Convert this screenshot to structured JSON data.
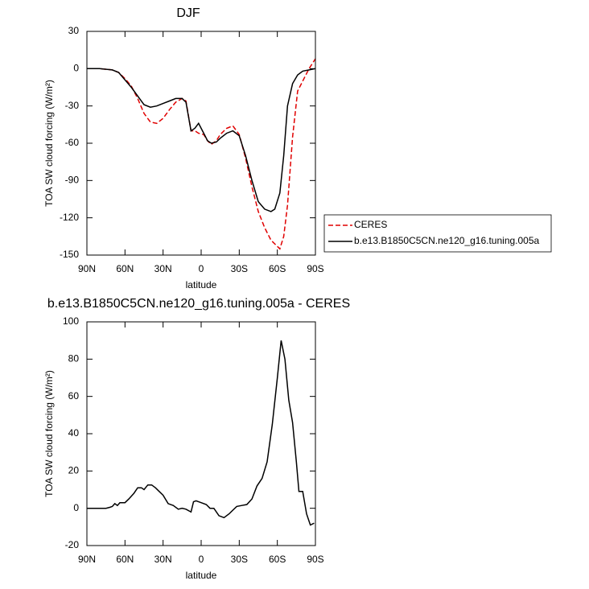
{
  "chart_data": [
    {
      "type": "line",
      "title": "DJF",
      "xlabel": "latitude",
      "ylabel": "TOA SW cloud forcing (W/m²)",
      "xlim": [
        90,
        -90
      ],
      "ylim": [
        -150,
        30
      ],
      "xticks": [
        {
          "value": 90,
          "label": "90N"
        },
        {
          "value": 60,
          "label": "60N"
        },
        {
          "value": 30,
          "label": "30N"
        },
        0,
        {
          "value": -30,
          "label": "30S"
        },
        {
          "value": -60,
          "label": "60S"
        },
        {
          "value": -90,
          "label": "90S"
        }
      ],
      "yticks": [
        30,
        0,
        -30,
        -60,
        -90,
        -120,
        -150
      ],
      "x": [
        90,
        80,
        70,
        65,
        60,
        55,
        50,
        45,
        40,
        35,
        30,
        25,
        20,
        15,
        12,
        8,
        5,
        2,
        -2,
        -5,
        -8,
        -12,
        -15,
        -20,
        -25,
        -30,
        -35,
        -40,
        -45,
        -50,
        -55,
        -58,
        -62,
        -65,
        -68,
        -72,
        -76,
        -80,
        -85,
        -90
      ],
      "series": [
        {
          "name": "CERES",
          "color": "#e00000",
          "dashed": true,
          "values": [
            0,
            0,
            -1,
            -3,
            -8,
            -14,
            -24,
            -36,
            -43,
            -44,
            -40,
            -33,
            -27,
            -24,
            -26,
            -50,
            -50,
            -52,
            -53,
            -58,
            -61,
            -58,
            -53,
            -48,
            -46,
            -53,
            -72,
            -95,
            -115,
            -128,
            -138,
            -141,
            -145,
            -135,
            -110,
            -55,
            -18,
            -10,
            0,
            8
          ]
        },
        {
          "name": "b.e13.B1850C5CN.ne120_g16.tuning.005a",
          "color": "#000000",
          "dashed": false,
          "values": [
            0,
            0,
            -1,
            -3,
            -9,
            -15,
            -22,
            -29,
            -31,
            -30,
            -28,
            -26,
            -24,
            -24,
            -27,
            -50,
            -48,
            -44,
            -52,
            -58,
            -60,
            -59,
            -56,
            -52,
            -50,
            -54,
            -70,
            -90,
            -107,
            -113,
            -115,
            -113,
            -100,
            -70,
            -30,
            -12,
            -5,
            -2,
            -1,
            0
          ]
        }
      ]
    },
    {
      "type": "line",
      "title": "b.e13.B1850C5CN.ne120_g16.tuning.005a - CERES",
      "xlabel": "latitude",
      "ylabel": "TOA SW cloud forcing (W/m²)",
      "xlim": [
        90,
        -90
      ],
      "ylim": [
        -20,
        100
      ],
      "xticks": [
        {
          "value": 90,
          "label": "90N"
        },
        {
          "value": 60,
          "label": "60N"
        },
        {
          "value": 30,
          "label": "30N"
        },
        0,
        {
          "value": -30,
          "label": "30S"
        },
        {
          "value": -60,
          "label": "60S"
        },
        {
          "value": -90,
          "label": "90S"
        }
      ],
      "yticks": [
        100,
        80,
        60,
        40,
        20,
        0,
        -20
      ],
      "x": [
        90,
        80,
        75,
        72,
        70,
        68,
        66,
        64,
        60,
        57,
        53,
        50,
        47,
        45,
        42,
        39,
        36,
        33,
        30,
        26,
        22,
        18,
        15,
        12,
        8,
        6,
        4,
        0,
        -4,
        -7,
        -10,
        -14,
        -18,
        -22,
        -25,
        -28,
        -32,
        -36,
        -40,
        -44,
        -48,
        -52,
        -56,
        -60,
        -63,
        -66,
        -69,
        -72,
        -75,
        -77,
        -80,
        -83,
        -86,
        -89
      ],
      "color": "#000000",
      "values": [
        0,
        0,
        0,
        0.5,
        1,
        2.5,
        1.5,
        3,
        3,
        5,
        8,
        11,
        11,
        10,
        12.5,
        12.5,
        11,
        9,
        7,
        2.5,
        1.5,
        -0.5,
        0,
        -0.5,
        -2,
        3.5,
        4,
        3,
        2,
        0,
        0,
        -4,
        -5,
        -3,
        -1,
        1,
        1.5,
        2,
        5,
        12,
        16,
        25,
        45,
        70,
        90,
        80,
        58,
        46,
        25,
        9,
        9,
        -3,
        -9,
        -8
      ]
    }
  ]
}
